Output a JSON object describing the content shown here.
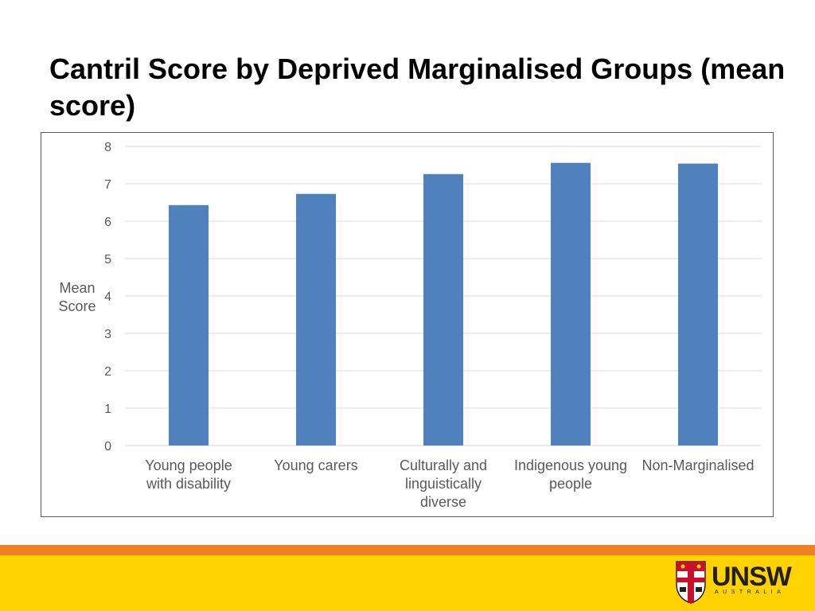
{
  "title": "Cantril Score by Deprived Marginalised Groups (mean score)",
  "chart_data": {
    "type": "bar",
    "title": "Cantril Score by Deprived Marginalised Groups (mean score)",
    "categories": [
      [
        "Young people",
        "with disability"
      ],
      [
        "Young carers"
      ],
      [
        "Culturally and",
        "linguistically",
        "diverse"
      ],
      [
        "Indigenous young",
        "people"
      ],
      [
        "Non-Marginalised"
      ]
    ],
    "values": [
      6.43,
      6.73,
      7.26,
      7.56,
      7.54
    ],
    "ylabel": [
      "Mean",
      "Score"
    ],
    "xlabel": "",
    "ylim": [
      0,
      8
    ],
    "yticks": [
      0,
      1,
      2,
      3,
      4,
      5,
      6,
      7,
      8
    ],
    "grid": true,
    "bar_color": "#4f81bd",
    "grid_color": "#d9d9d9"
  },
  "footer": {
    "orange_color": "#f07f1f",
    "yellow_color": "#ffd200",
    "logo_name": "UNSW",
    "logo_sub": "AUSTRALIA"
  }
}
